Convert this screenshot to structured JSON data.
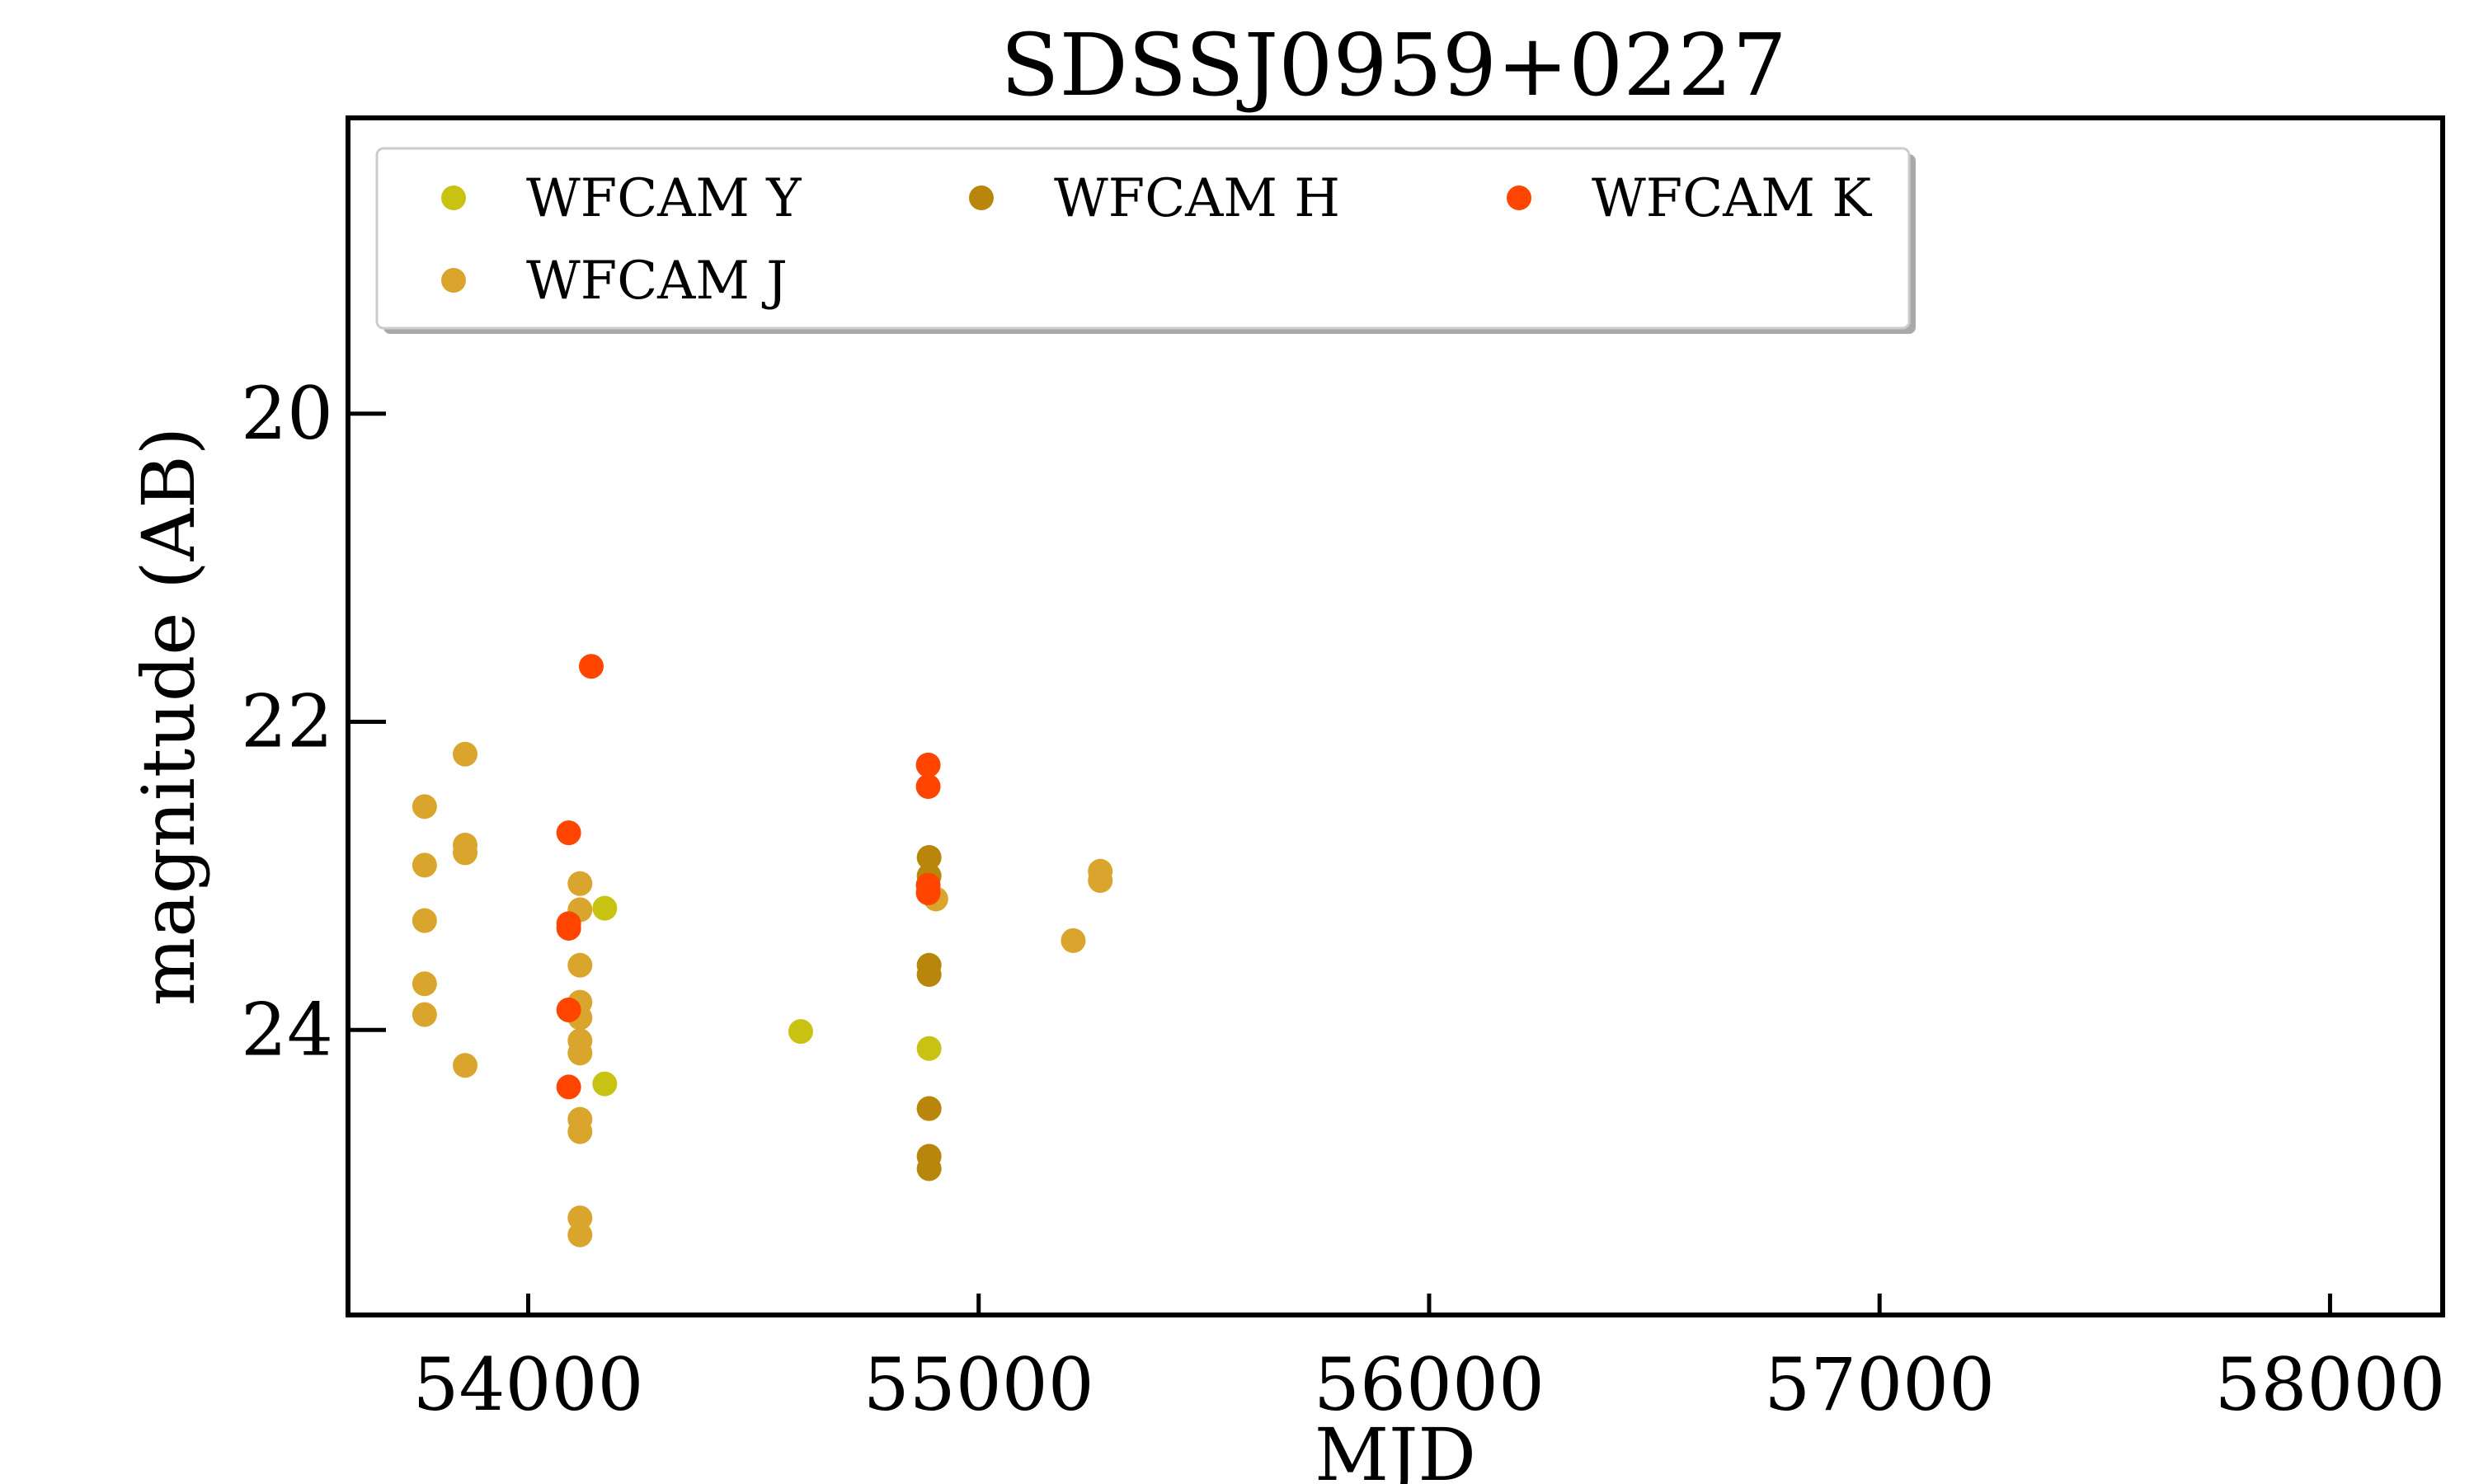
{
  "chart_data": {
    "type": "scatter",
    "title": "SDSSJ0959+0227",
    "xlabel": "MJD",
    "ylabel": "magnitude (AB)",
    "xlim": [
      53600,
      58250
    ],
    "ylim": [
      25.85,
      18.08
    ],
    "y_inverted": true,
    "xticks": [
      54000,
      55000,
      56000,
      57000,
      58000
    ],
    "yticks": [
      20,
      22,
      24
    ],
    "grid": false,
    "legend_position": "top-left",
    "legend_columns": 3,
    "series": [
      {
        "name": "WFCAM J",
        "color": "#DAA52D",
        "points": [
          [
            53770,
            22.55
          ],
          [
            53770,
            22.93
          ],
          [
            53770,
            23.29
          ],
          [
            53770,
            23.7
          ],
          [
            53770,
            23.9
          ],
          [
            53860,
            22.21
          ],
          [
            53860,
            22.8
          ],
          [
            53860,
            22.85
          ],
          [
            53860,
            24.23
          ],
          [
            54115,
            23.05
          ],
          [
            54115,
            23.22
          ],
          [
            54115,
            23.58
          ],
          [
            54115,
            23.82
          ],
          [
            54115,
            23.92
          ],
          [
            54115,
            24.07
          ],
          [
            54115,
            24.15
          ],
          [
            54115,
            24.58
          ],
          [
            54115,
            24.66
          ],
          [
            54115,
            25.22
          ],
          [
            54115,
            25.33
          ],
          [
            54905,
            23.15
          ],
          [
            55210,
            23.42
          ],
          [
            55270,
            22.97
          ],
          [
            55270,
            23.03
          ]
        ]
      },
      {
        "name": "WFCAM Y",
        "color": "#C8C212",
        "points": [
          [
            54170,
            23.21
          ],
          [
            54170,
            24.35
          ],
          [
            54605,
            24.01
          ],
          [
            54890,
            24.12
          ],
          [
            54890,
            24.51
          ]
        ]
      },
      {
        "name": "WFCAM H",
        "color": "#B8860B",
        "points": [
          [
            54890,
            22.88
          ],
          [
            54890,
            23.0
          ],
          [
            54890,
            23.58
          ],
          [
            54890,
            23.64
          ],
          [
            54890,
            24.51
          ],
          [
            54890,
            24.82
          ],
          [
            54890,
            24.9
          ]
        ]
      },
      {
        "name": "WFCAM K",
        "color": "#FF4500",
        "points": [
          [
            54140,
            21.64
          ],
          [
            54090,
            22.72
          ],
          [
            54090,
            23.31
          ],
          [
            54090,
            23.34
          ],
          [
            54090,
            23.87
          ],
          [
            54090,
            24.37
          ],
          [
            54888,
            22.28
          ],
          [
            54888,
            22.42
          ],
          [
            54888,
            23.06
          ],
          [
            54888,
            23.11
          ]
        ]
      }
    ],
    "legend": [
      {
        "series": "WFCAM Y",
        "label": "WFCAM Y",
        "color": "#C8C212"
      },
      {
        "series": "WFCAM H",
        "label": "WFCAM H",
        "color": "#B8860B"
      },
      {
        "series": "WFCAM K",
        "label": "WFCAM K",
        "color": "#FF4500"
      },
      {
        "series": "WFCAM J",
        "label": "WFCAM J",
        "color": "#DAA52D"
      }
    ]
  }
}
